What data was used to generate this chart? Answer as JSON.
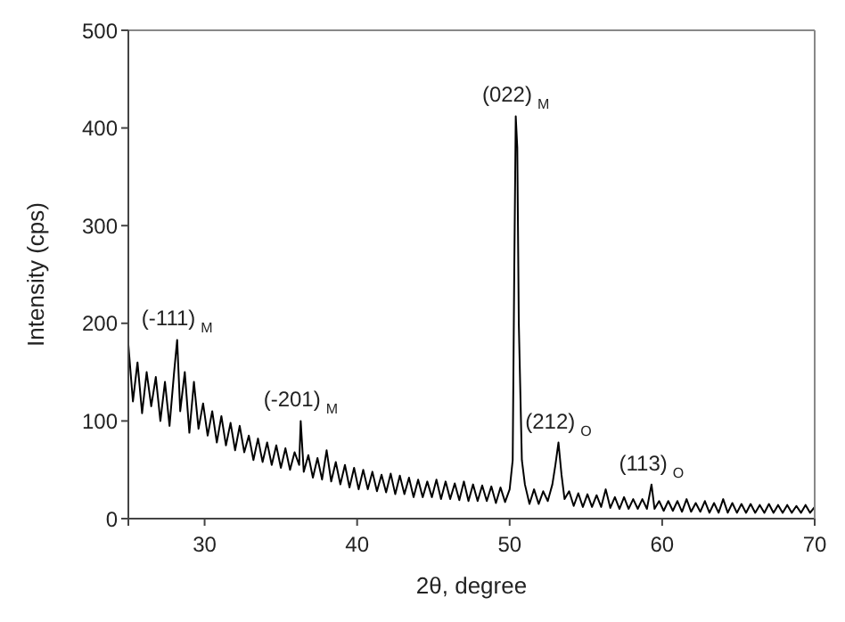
{
  "chart_data": {
    "type": "line",
    "xlabel": "2θ, degree",
    "ylabel": "Intensity (cps)",
    "xlim": [
      25,
      70
    ],
    "xticks": [
      {
        "value": 25,
        "label": null
      },
      30,
      40,
      50,
      60,
      70
    ],
    "ylim": [
      0,
      500
    ],
    "yticks": [
      0,
      100,
      200,
      300,
      400,
      500
    ],
    "marker": "none",
    "line_style": "solid",
    "annotations": [
      {
        "text": "(-111)$_{M}$",
        "x": 28.2,
        "y": 183
      },
      {
        "text": "(-201)$_{M}$",
        "x": 36.3,
        "y": 100
      },
      {
        "text": "(022)$_{M}$",
        "x": 50.4,
        "y": 412
      },
      {
        "text": "(212)$_{O}$",
        "x": 53.2,
        "y": 78
      },
      {
        "text": "(113)$_{O}$",
        "x": 59.3,
        "y": 35
      }
    ],
    "series": [
      {
        "color": "#000000",
        "x": [
          25.0,
          25.3,
          25.6,
          25.9,
          26.2,
          26.5,
          26.8,
          27.1,
          27.4,
          27.7,
          28.0,
          28.2,
          28.4,
          28.7,
          29.0,
          29.3,
          29.6,
          29.9,
          30.2,
          30.5,
          30.8,
          31.1,
          31.4,
          31.7,
          32.0,
          32.3,
          32.6,
          32.9,
          33.2,
          33.5,
          33.8,
          34.1,
          34.4,
          34.7,
          35.0,
          35.3,
          35.6,
          35.9,
          36.2,
          36.3,
          36.5,
          36.8,
          37.1,
          37.4,
          37.7,
          38.0,
          38.3,
          38.6,
          38.9,
          39.2,
          39.5,
          39.8,
          40.1,
          40.4,
          40.7,
          41.0,
          41.3,
          41.6,
          41.9,
          42.2,
          42.5,
          42.8,
          43.1,
          43.4,
          43.7,
          44.0,
          44.3,
          44.6,
          44.9,
          45.2,
          45.5,
          45.8,
          46.1,
          46.4,
          46.7,
          47.0,
          47.3,
          47.6,
          47.9,
          48.2,
          48.5,
          48.8,
          49.1,
          49.4,
          49.7,
          50.0,
          50.2,
          50.3,
          50.4,
          50.5,
          50.6,
          50.8,
          51.0,
          51.3,
          51.6,
          51.9,
          52.2,
          52.5,
          52.8,
          53.0,
          53.2,
          53.4,
          53.6,
          53.9,
          54.2,
          54.5,
          54.8,
          55.1,
          55.4,
          55.7,
          56.0,
          56.3,
          56.6,
          56.9,
          57.2,
          57.5,
          57.8,
          58.1,
          58.4,
          58.7,
          59.0,
          59.3,
          59.5,
          59.8,
          60.1,
          60.4,
          60.7,
          61.0,
          61.3,
          61.6,
          61.9,
          62.2,
          62.5,
          62.8,
          63.1,
          63.4,
          63.7,
          64.0,
          64.3,
          64.6,
          64.9,
          65.2,
          65.5,
          65.8,
          66.1,
          66.4,
          66.7,
          67.0,
          67.3,
          67.6,
          67.9,
          68.2,
          68.5,
          68.8,
          69.1,
          69.4,
          69.7,
          70.0
        ],
        "values": [
          178,
          120,
          160,
          108,
          150,
          115,
          145,
          100,
          140,
          95,
          150,
          183,
          110,
          150,
          88,
          140,
          92,
          118,
          85,
          110,
          78,
          105,
          75,
          98,
          70,
          95,
          68,
          85,
          60,
          82,
          58,
          78,
          55,
          75,
          52,
          72,
          50,
          68,
          55,
          100,
          48,
          65,
          42,
          62,
          40,
          70,
          38,
          58,
          35,
          55,
          32,
          52,
          30,
          50,
          30,
          48,
          28,
          45,
          27,
          46,
          25,
          44,
          25,
          42,
          22,
          40,
          22,
          38,
          22,
          40,
          20,
          38,
          20,
          36,
          19,
          38,
          18,
          35,
          18,
          34,
          18,
          33,
          16,
          32,
          17,
          30,
          60,
          250,
          412,
          380,
          200,
          60,
          35,
          15,
          30,
          15,
          28,
          18,
          35,
          55,
          78,
          45,
          20,
          28,
          13,
          26,
          12,
          25,
          12,
          24,
          12,
          30,
          11,
          22,
          10,
          22,
          10,
          20,
          10,
          20,
          10,
          35,
          10,
          18,
          8,
          18,
          8,
          18,
          7,
          20,
          7,
          16,
          7,
          18,
          6,
          16,
          6,
          20,
          6,
          16,
          6,
          15,
          6,
          15,
          6,
          14,
          6,
          15,
          6,
          14,
          6,
          14,
          6,
          13,
          6,
          14,
          6,
          12
        ]
      }
    ]
  }
}
